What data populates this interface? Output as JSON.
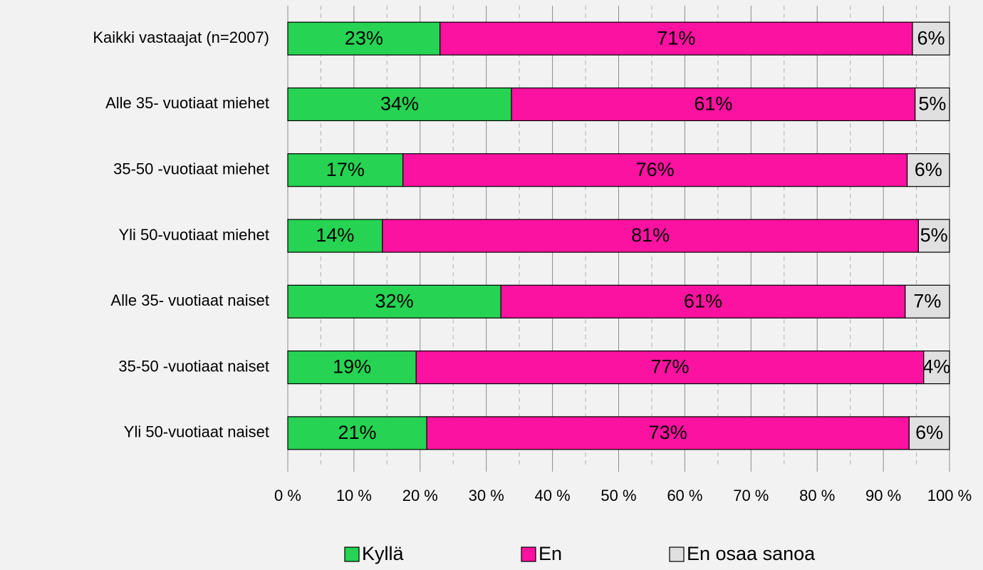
{
  "chart_data": {
    "type": "bar",
    "orientation": "horizontal",
    "stacked": true,
    "categories": [
      "Kaikki vastaajat (n=2007)",
      "Alle 35- vuotiaat miehet",
      "35-50 -vuotiaat miehet",
      "Yli 50-vuotiaat miehet",
      "Alle 35- vuotiaat naiset",
      "35-50 -vuotiaat naiset",
      "Yli 50-vuotiaat naiset"
    ],
    "series": [
      {
        "name": "Kyllä",
        "color": "#26d353",
        "values": [
          23,
          33.8,
          17.4,
          14.3,
          32.2,
          19.4,
          21.0
        ],
        "value_labels": [
          "23%",
          "34%",
          "17%",
          "14%",
          "32%",
          "19%",
          "21%"
        ]
      },
      {
        "name": "En",
        "color": "#fc12a0",
        "values": [
          71.4,
          61.0,
          76.2,
          81.0,
          61.1,
          76.7,
          72.9
        ],
        "value_labels": [
          "71%",
          "61%",
          "76%",
          "81%",
          "61%",
          "77%",
          "73%"
        ]
      },
      {
        "name": "En osaa sanoa",
        "color": "#e0e0e0",
        "values": [
          5.6,
          5.2,
          6.4,
          4.7,
          6.7,
          3.9,
          6.1
        ],
        "value_labels": [
          "6%",
          "5%",
          "6%",
          "5%",
          "7%",
          "4%",
          "6%"
        ]
      }
    ],
    "xlim": [
      0,
      100
    ],
    "xticks": [
      {
        "value": 0,
        "label": "0 %"
      },
      {
        "value": 10,
        "label": "10 %"
      },
      {
        "value": 20,
        "label": "20 %"
      },
      {
        "value": 30,
        "label": "30 %"
      },
      {
        "value": 40,
        "label": "40 %"
      },
      {
        "value": 50,
        "label": "50 %"
      },
      {
        "value": 60,
        "label": "60 %"
      },
      {
        "value": 70,
        "label": "70 %"
      },
      {
        "value": 80,
        "label": "80 %"
      },
      {
        "value": 90,
        "label": "90 %"
      },
      {
        "value": 100,
        "label": "100 %"
      }
    ],
    "grid": true,
    "legend": "bottom"
  }
}
